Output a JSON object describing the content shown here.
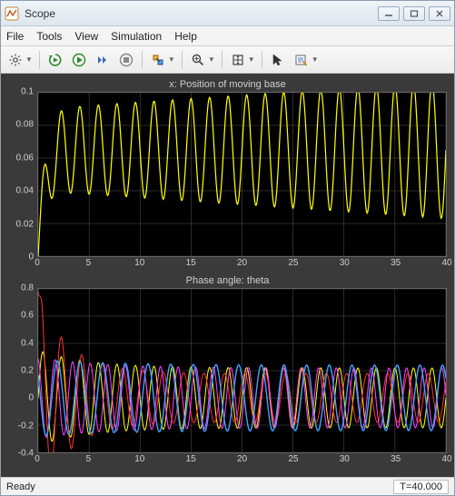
{
  "window": {
    "title": "Scope"
  },
  "menu": {
    "items": [
      "File",
      "Tools",
      "View",
      "Simulation",
      "Help"
    ]
  },
  "toolbar": {
    "icons": [
      "gear-icon",
      "dd",
      "sep",
      "run-restart-icon",
      "run-icon",
      "step-icon",
      "stop-icon",
      "sep",
      "highlight-icon",
      "dd",
      "sep",
      "zoom-icon",
      "dd",
      "sep",
      "scale-icon",
      "dd",
      "sep",
      "cursor-icon",
      "props-icon",
      "dd"
    ]
  },
  "statusbar": {
    "status": "Ready",
    "time": "T=40.000"
  },
  "plots": [
    {
      "type": "line",
      "title": "x: Position of moving base",
      "background": "#000000",
      "grid_color": "#555555",
      "text_color": "#cfcfcf",
      "xlim": [
        0,
        40
      ],
      "ylim": [
        0,
        0.1
      ],
      "xticks": [
        0,
        5,
        10,
        15,
        20,
        25,
        30,
        35,
        40
      ],
      "yticks": [
        0,
        0.02,
        0.04,
        0.06,
        0.08,
        0.1
      ],
      "series": [
        {
          "color": "#ffff00",
          "freq_hz": 0.55,
          "amp_start": 0.025,
          "amp_end": 0.042,
          "offset": 0.065,
          "rise_tau": 0.6,
          "linewidth": 1.2
        }
      ]
    },
    {
      "type": "line",
      "title": "Phase angle: theta",
      "background": "#000000",
      "grid_color": "#555555",
      "text_color": "#cfcfcf",
      "xlim": [
        0,
        40
      ],
      "ylim": [
        -0.4,
        0.8
      ],
      "xticks": [
        0,
        5,
        10,
        15,
        20,
        25,
        30,
        35,
        40
      ],
      "yticks": [
        -0.4,
        -0.2,
        0,
        0.2,
        0.4,
        0.6,
        0.8
      ],
      "series": [
        {
          "color": "#ffff00",
          "freq_hz": 0.55,
          "amp_start": 0.35,
          "amp_end": 0.22,
          "offset": 0.0,
          "decay_tau": 5,
          "linewidth": 1.0,
          "phase": 0.0
        },
        {
          "color": "#ff3030",
          "freq_hz": 0.5,
          "amp_start": 0.75,
          "amp_end": 0.18,
          "offset": 0.0,
          "decay_tau": 3,
          "linewidth": 1.0,
          "phase": 0.7,
          "init_peak": 0.78
        },
        {
          "color": "#ff40ff",
          "freq_hz": 0.58,
          "amp_start": 0.3,
          "amp_end": 0.22,
          "offset": 0.0,
          "decay_tau": 6,
          "linewidth": 1.0,
          "phase": 1.8
        },
        {
          "color": "#40a0ff",
          "freq_hz": 0.45,
          "amp_start": 0.28,
          "amp_end": 0.24,
          "offset": 0.0,
          "decay_tau": 8,
          "linewidth": 1.4,
          "phase": 2.5
        }
      ]
    }
  ]
}
